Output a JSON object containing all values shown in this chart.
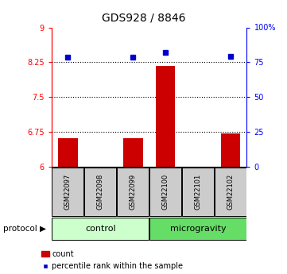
{
  "title": "GDS928 / 8846",
  "samples": [
    "GSM22097",
    "GSM22098",
    "GSM22099",
    "GSM22100",
    "GSM22101",
    "GSM22102"
  ],
  "groups": [
    "control",
    "control",
    "control",
    "microgravity",
    "microgravity",
    "microgravity"
  ],
  "red_bars": [
    6.62,
    6.0,
    6.63,
    8.18,
    6.0,
    6.73
  ],
  "blue_squares": [
    78.5,
    null,
    78.5,
    82.0,
    null,
    79.0
  ],
  "ylim_left": [
    6,
    9
  ],
  "ylim_right": [
    0,
    100
  ],
  "yticks_left": [
    6,
    6.75,
    7.5,
    8.25,
    9
  ],
  "ytick_labels_left": [
    "6",
    "6.75",
    "7.5",
    "8.25",
    "9"
  ],
  "yticks_right": [
    0,
    25,
    50,
    75,
    100
  ],
  "ytick_labels_right": [
    "0",
    "25",
    "50",
    "75",
    "100%"
  ],
  "grid_lines": [
    6.75,
    7.5,
    8.25
  ],
  "bar_color": "#cc0000",
  "square_color": "#0000cc",
  "control_color": "#ccffcc",
  "microgravity_color": "#66dd66",
  "sample_box_color": "#cccccc",
  "bar_width": 0.6,
  "legend_items": [
    "count",
    "percentile rank within the sample"
  ]
}
